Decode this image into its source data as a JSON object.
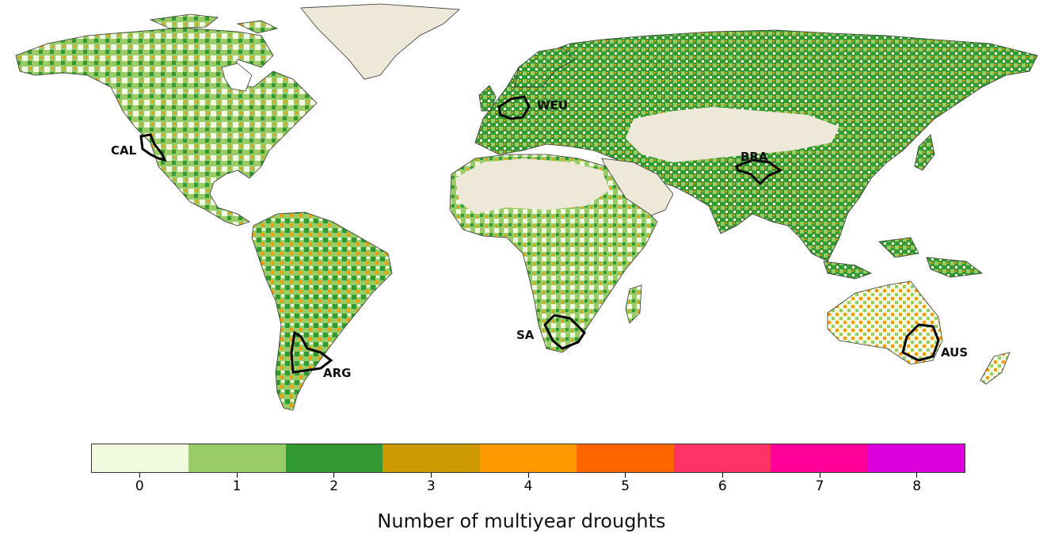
{
  "map": {
    "regions": [
      {
        "id": "CAL",
        "label": "CAL"
      },
      {
        "id": "WEU",
        "label": "WEU"
      },
      {
        "id": "BRA",
        "label": "BRA"
      },
      {
        "id": "SA",
        "label": "SA"
      },
      {
        "id": "ARG",
        "label": "ARG"
      },
      {
        "id": "AUS",
        "label": "AUS"
      }
    ]
  },
  "colorbar": {
    "title": "Number of multiyear droughts",
    "classes": [
      {
        "value": "0",
        "color": "#f2fbdf"
      },
      {
        "value": "1",
        "color": "#99cc66"
      },
      {
        "value": "2",
        "color": "#339933"
      },
      {
        "value": "3",
        "color": "#cc9900"
      },
      {
        "value": "4",
        "color": "#ff9900"
      },
      {
        "value": "5",
        "color": "#ff6600"
      },
      {
        "value": "6",
        "color": "#ff3366"
      },
      {
        "value": "7",
        "color": "#ff0099"
      },
      {
        "value": "8",
        "color": "#dd00dd"
      }
    ]
  },
  "colors": {
    "no_data_land": "#ede8d8",
    "coastline": "#333333",
    "region_outline": "#000000"
  }
}
